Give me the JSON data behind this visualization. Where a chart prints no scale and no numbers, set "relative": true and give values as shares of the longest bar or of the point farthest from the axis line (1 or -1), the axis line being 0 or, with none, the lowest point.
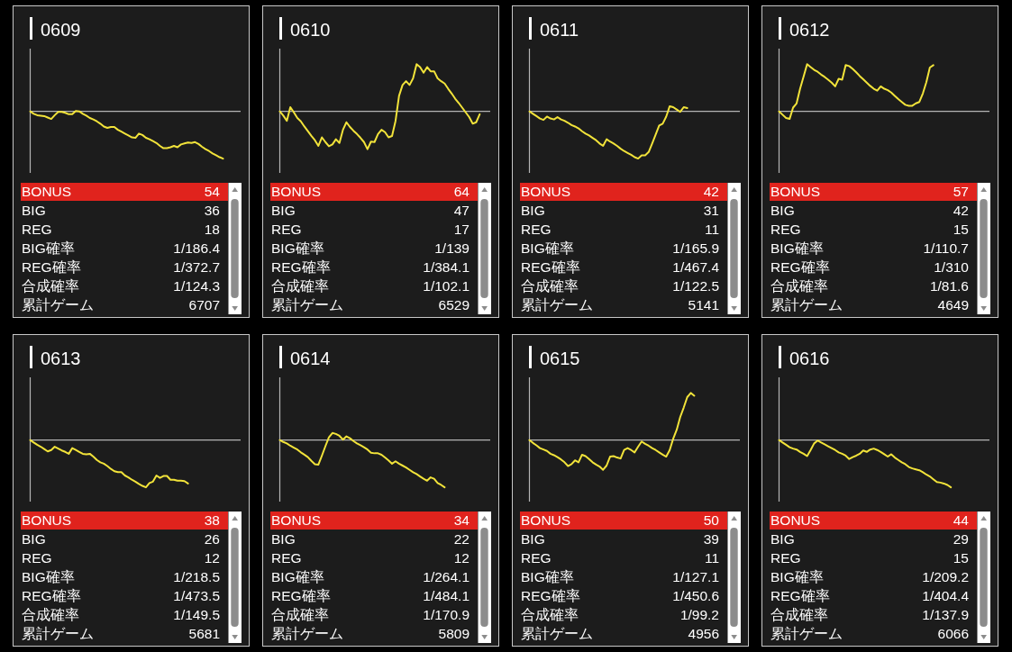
{
  "chart_data": [
    {
      "type": "line",
      "title": "0609",
      "relative": true,
      "categories": [
        null,
        null,
        null,
        null,
        null,
        null,
        null,
        null,
        null,
        null,
        null,
        null,
        null,
        null,
        null,
        null,
        null,
        null,
        null,
        null,
        null,
        null,
        null,
        null,
        null,
        null,
        null,
        null,
        null,
        null,
        null,
        null,
        null,
        null,
        null,
        null,
        null,
        null,
        null,
        null,
        null,
        null,
        null,
        null,
        null,
        null,
        null,
        null,
        null,
        null,
        null,
        null,
        null,
        null,
        null,
        null,
        null,
        null,
        null,
        null,
        null
      ],
      "series": [
        {
          "color": "#f2e33a",
          "values": [
            0,
            -0.05,
            -0.08,
            -0.09,
            -0.1,
            -0.13,
            -0.16,
            -0.08,
            -0.01,
            -0.01,
            -0.03,
            -0.06,
            -0.06,
            0.01,
            0,
            -0.05,
            -0.09,
            -0.14,
            -0.17,
            -0.21,
            -0.26,
            -0.32,
            -0.35,
            -0.33,
            -0.33,
            -0.39,
            -0.43,
            -0.47,
            -0.51,
            -0.55,
            -0.56,
            -0.47,
            -0.5,
            -0.56,
            -0.59,
            -0.63,
            -0.67,
            -0.73,
            -0.78,
            -0.78,
            -0.76,
            -0.73,
            -0.76,
            -0.7,
            -0.68,
            -0.66,
            -0.67,
            -0.65,
            -0.69,
            -0.75,
            -0.8,
            -0.84,
            -0.89,
            -0.93,
            -0.97,
            -1,
            null,
            null,
            null,
            null,
            null
          ]
        }
      ],
      "annotations": [
        "BONUS",
        "54",
        "BIG",
        "36",
        "REG",
        "18",
        "BIG確率",
        "1/186.4",
        "REG確率",
        "1/372.7",
        "合成確率",
        "1/124.3",
        "累計ゲーム",
        "6707"
      ]
    },
    {
      "type": "line",
      "title": "0610",
      "relative": true,
      "categories": [
        null,
        null,
        null,
        null,
        null,
        null,
        null,
        null,
        null,
        null,
        null,
        null,
        null,
        null,
        null,
        null,
        null,
        null,
        null,
        null,
        null,
        null,
        null,
        null,
        null,
        null,
        null,
        null,
        null,
        null,
        null,
        null,
        null,
        null,
        null,
        null,
        null,
        null,
        null,
        null,
        null,
        null,
        null,
        null,
        null,
        null,
        null,
        null,
        null,
        null,
        null,
        null,
        null,
        null,
        null,
        null,
        null,
        null,
        null,
        null,
        null
      ],
      "series": [
        {
          "color": "#f2e33a",
          "values": [
            0,
            -0.09,
            -0.2,
            0.09,
            -0.02,
            -0.14,
            -0.21,
            -0.32,
            -0.42,
            -0.52,
            -0.61,
            -0.73,
            -0.55,
            -0.65,
            -0.74,
            -0.7,
            -0.59,
            -0.67,
            -0.39,
            -0.23,
            -0.33,
            -0.41,
            -0.48,
            -0.56,
            -0.65,
            -0.8,
            -0.64,
            -0.65,
            -0.48,
            -0.39,
            -0.44,
            -0.55,
            -0.52,
            -0.2,
            0.33,
            0.56,
            0.64,
            0.56,
            0.7,
            1,
            0.94,
            0.82,
            0.94,
            0.85,
            0.85,
            0.7,
            0.64,
            0.59,
            0.48,
            0.38,
            0.27,
            0.18,
            0.08,
            -0.02,
            -0.12,
            -0.26,
            -0.23,
            -0.06,
            null,
            null,
            null
          ]
        }
      ],
      "annotations": [
        "BONUS",
        "64",
        "BIG",
        "47",
        "REG",
        "17",
        "BIG確率",
        "1/139",
        "REG確率",
        "1/384.1",
        "合成確率",
        "1/102.1",
        "累計ゲーム",
        "6529"
      ]
    },
    {
      "type": "line",
      "title": "0611",
      "relative": true,
      "categories": [
        null,
        null,
        null,
        null,
        null,
        null,
        null,
        null,
        null,
        null,
        null,
        null,
        null,
        null,
        null,
        null,
        null,
        null,
        null,
        null,
        null,
        null,
        null,
        null,
        null,
        null,
        null,
        null,
        null,
        null,
        null,
        null,
        null,
        null,
        null,
        null,
        null,
        null,
        null,
        null,
        null,
        null,
        null,
        null,
        null,
        null,
        null,
        null,
        null,
        null,
        null,
        null,
        null,
        null,
        null,
        null,
        null,
        null,
        null,
        null,
        null
      ],
      "series": [
        {
          "color": "#f2e33a",
          "values": [
            0,
            -0.05,
            -0.1,
            -0.15,
            -0.18,
            -0.11,
            -0.15,
            -0.17,
            -0.12,
            -0.17,
            -0.2,
            -0.24,
            -0.29,
            -0.32,
            -0.36,
            -0.42,
            -0.47,
            -0.51,
            -0.56,
            -0.61,
            -0.68,
            -0.73,
            -0.59,
            -0.64,
            -0.68,
            -0.73,
            -0.79,
            -0.84,
            -0.88,
            -0.92,
            -0.97,
            -1,
            -0.93,
            -0.93,
            -0.86,
            -0.68,
            -0.49,
            -0.3,
            -0.26,
            -0.11,
            0.11,
            0.09,
            0.04,
            -0.01,
            0.09,
            0.07,
            null,
            null,
            null,
            null,
            null,
            null,
            null,
            null,
            null,
            null,
            null,
            null,
            null,
            null,
            null
          ]
        }
      ],
      "annotations": [
        "BONUS",
        "42",
        "BIG",
        "31",
        "REG",
        "11",
        "BIG確率",
        "1/165.9",
        "REG確率",
        "1/467.4",
        "合成確率",
        "1/122.5",
        "累計ゲーム",
        "5141"
      ]
    },
    {
      "type": "line",
      "title": "0612",
      "relative": true,
      "categories": [
        null,
        null,
        null,
        null,
        null,
        null,
        null,
        null,
        null,
        null,
        null,
        null,
        null,
        null,
        null,
        null,
        null,
        null,
        null,
        null,
        null,
        null,
        null,
        null,
        null,
        null,
        null,
        null,
        null,
        null,
        null,
        null,
        null,
        null,
        null,
        null,
        null,
        null,
        null,
        null,
        null,
        null,
        null,
        null,
        null,
        null,
        null,
        null,
        null,
        null,
        null,
        null,
        null,
        null,
        null,
        null,
        null,
        null,
        null,
        null,
        null
      ],
      "series": [
        {
          "color": "#f2e33a",
          "values": [
            0,
            -0.07,
            -0.14,
            -0.16,
            0.08,
            0.17,
            0.48,
            0.74,
            1,
            0.94,
            0.88,
            0.84,
            0.78,
            0.73,
            0.67,
            0.61,
            0.53,
            0.69,
            0.67,
            0.98,
            0.96,
            0.9,
            0.83,
            0.75,
            0.68,
            0.61,
            0.54,
            0.48,
            0.44,
            0.53,
            0.48,
            0.45,
            0.4,
            0.33,
            0.26,
            0.2,
            0.14,
            0.12,
            0.12,
            0.17,
            0.2,
            0.38,
            0.62,
            0.93,
            0.98,
            null,
            null,
            null,
            null,
            null,
            null,
            null,
            null,
            null,
            null,
            null,
            null,
            null,
            null,
            null,
            null
          ]
        }
      ],
      "annotations": [
        "BONUS",
        "57",
        "BIG",
        "42",
        "REG",
        "15",
        "BIG確率",
        "1/110.7",
        "REG確率",
        "1/310",
        "合成確率",
        "1/81.6",
        "累計ゲーム",
        "4649"
      ]
    },
    {
      "type": "line",
      "title": "0613",
      "relative": true,
      "categories": [
        null,
        null,
        null,
        null,
        null,
        null,
        null,
        null,
        null,
        null,
        null,
        null,
        null,
        null,
        null,
        null,
        null,
        null,
        null,
        null,
        null,
        null,
        null,
        null,
        null,
        null,
        null,
        null,
        null,
        null,
        null,
        null,
        null,
        null,
        null,
        null,
        null,
        null,
        null,
        null,
        null,
        null,
        null,
        null,
        null,
        null,
        null,
        null,
        null,
        null,
        null,
        null,
        null,
        null,
        null,
        null,
        null,
        null,
        null,
        null,
        null
      ],
      "series": [
        {
          "color": "#f2e33a",
          "values": [
            0,
            -0.05,
            -0.1,
            -0.14,
            -0.19,
            -0.24,
            -0.21,
            -0.14,
            -0.18,
            -0.22,
            -0.25,
            -0.29,
            -0.17,
            -0.21,
            -0.25,
            -0.29,
            -0.3,
            -0.29,
            -0.35,
            -0.42,
            -0.47,
            -0.5,
            -0.55,
            -0.61,
            -0.66,
            -0.68,
            -0.68,
            -0.75,
            -0.79,
            -0.84,
            -0.88,
            -0.93,
            -0.97,
            -1,
            -0.91,
            -0.88,
            -0.75,
            -0.8,
            -0.76,
            -0.76,
            -0.84,
            -0.84,
            -0.86,
            -0.86,
            -0.87,
            -0.92,
            null,
            null,
            null,
            null,
            null,
            null,
            null,
            null,
            null,
            null,
            null,
            null,
            null,
            null,
            null
          ]
        }
      ],
      "annotations": [
        "BONUS",
        "38",
        "BIG",
        "26",
        "REG",
        "12",
        "BIG確率",
        "1/218.5",
        "REG確率",
        "1/473.5",
        "合成確率",
        "1/149.5",
        "累計ゲーム",
        "5681"
      ]
    },
    {
      "type": "line",
      "title": "0614",
      "relative": true,
      "categories": [
        null,
        null,
        null,
        null,
        null,
        null,
        null,
        null,
        null,
        null,
        null,
        null,
        null,
        null,
        null,
        null,
        null,
        null,
        null,
        null,
        null,
        null,
        null,
        null,
        null,
        null,
        null,
        null,
        null,
        null,
        null,
        null,
        null,
        null,
        null,
        null,
        null,
        null,
        null,
        null,
        null,
        null,
        null,
        null,
        null,
        null,
        null,
        null,
        null,
        null,
        null,
        null,
        null,
        null,
        null,
        null,
        null,
        null,
        null,
        null,
        null
      ],
      "series": [
        {
          "color": "#f2e33a",
          "values": [
            0,
            -0.04,
            -0.07,
            -0.12,
            -0.16,
            -0.2,
            -0.26,
            -0.31,
            -0.36,
            -0.44,
            -0.51,
            -0.52,
            -0.33,
            -0.13,
            0.06,
            0.15,
            0.13,
            0.09,
            0.01,
            0.08,
            0.04,
            -0.02,
            -0.07,
            -0.11,
            -0.15,
            -0.2,
            -0.27,
            -0.28,
            -0.28,
            -0.31,
            -0.37,
            -0.43,
            -0.5,
            -0.45,
            -0.5,
            -0.54,
            -0.58,
            -0.63,
            -0.68,
            -0.72,
            -0.77,
            -0.82,
            -0.86,
            -0.79,
            -0.82,
            -0.91,
            -0.95,
            -1,
            null,
            null,
            null,
            null,
            null,
            null,
            null,
            null,
            null,
            null,
            null,
            null,
            null
          ]
        }
      ],
      "annotations": [
        "BONUS",
        "34",
        "BIG",
        "22",
        "REG",
        "12",
        "BIG確率",
        "1/264.1",
        "REG確率",
        "1/484.1",
        "合成確率",
        "1/170.9",
        "累計ゲーム",
        "5809"
      ]
    },
    {
      "type": "line",
      "title": "0615",
      "relative": true,
      "categories": [
        null,
        null,
        null,
        null,
        null,
        null,
        null,
        null,
        null,
        null,
        null,
        null,
        null,
        null,
        null,
        null,
        null,
        null,
        null,
        null,
        null,
        null,
        null,
        null,
        null,
        null,
        null,
        null,
        null,
        null,
        null,
        null,
        null,
        null,
        null,
        null,
        null,
        null,
        null,
        null,
        null,
        null,
        null,
        null,
        null,
        null,
        null,
        null,
        null,
        null,
        null,
        null,
        null,
        null,
        null,
        null,
        null,
        null,
        null,
        null,
        null
      ],
      "series": [
        {
          "color": "#f2e33a",
          "values": [
            0,
            -0.06,
            -0.11,
            -0.17,
            -0.2,
            -0.23,
            -0.29,
            -0.32,
            -0.36,
            -0.41,
            -0.47,
            -0.55,
            -0.51,
            -0.43,
            -0.47,
            -0.31,
            -0.34,
            -0.4,
            -0.47,
            -0.52,
            -0.56,
            -0.63,
            -0.54,
            -0.35,
            -0.34,
            -0.37,
            -0.39,
            -0.21,
            -0.17,
            -0.21,
            -0.26,
            -0.14,
            -0.03,
            -0.08,
            -0.12,
            -0.17,
            -0.21,
            -0.26,
            -0.31,
            -0.35,
            -0.21,
            0.03,
            0.22,
            0.49,
            0.69,
            0.91,
            1,
            0.94,
            null,
            null,
            null,
            null,
            null,
            null,
            null,
            null,
            null,
            null,
            null,
            null,
            null
          ]
        }
      ],
      "annotations": [
        "BONUS",
        "50",
        "BIG",
        "39",
        "REG",
        "11",
        "BIG確率",
        "1/127.1",
        "REG確率",
        "1/450.6",
        "合成確率",
        "1/99.2",
        "累計ゲーム",
        "4956"
      ]
    },
    {
      "type": "line",
      "title": "0616",
      "relative": true,
      "categories": [
        null,
        null,
        null,
        null,
        null,
        null,
        null,
        null,
        null,
        null,
        null,
        null,
        null,
        null,
        null,
        null,
        null,
        null,
        null,
        null,
        null,
        null,
        null,
        null,
        null,
        null,
        null,
        null,
        null,
        null,
        null,
        null,
        null,
        null,
        null,
        null,
        null,
        null,
        null,
        null,
        null,
        null,
        null,
        null,
        null,
        null,
        null,
        null,
        null,
        null,
        null,
        null,
        null,
        null,
        null,
        null,
        null,
        null,
        null,
        null,
        null
      ],
      "series": [
        {
          "color": "#f2e33a",
          "values": [
            0,
            -0.05,
            -0.1,
            -0.15,
            -0.18,
            -0.2,
            -0.25,
            -0.29,
            -0.34,
            -0.21,
            -0.07,
            -0.01,
            -0.05,
            -0.09,
            -0.13,
            -0.17,
            -0.21,
            -0.26,
            -0.29,
            -0.33,
            -0.4,
            -0.36,
            -0.33,
            -0.29,
            -0.22,
            -0.25,
            -0.2,
            -0.18,
            -0.21,
            -0.25,
            -0.3,
            -0.35,
            -0.3,
            -0.37,
            -0.42,
            -0.47,
            -0.51,
            -0.57,
            -0.6,
            -0.62,
            -0.64,
            -0.68,
            -0.73,
            -0.77,
            -0.83,
            -0.89,
            -0.9,
            -0.92,
            -0.95,
            -1,
            null,
            null,
            null,
            null,
            null,
            null,
            null,
            null,
            null,
            null,
            null
          ]
        }
      ],
      "annotations": [
        "BONUS",
        "44",
        "BIG",
        "29",
        "REG",
        "15",
        "BIG確率",
        "1/209.2",
        "REG確率",
        "1/404.4",
        "合成確率",
        "1/137.9",
        "累計ゲーム",
        "6066"
      ]
    }
  ]
}
